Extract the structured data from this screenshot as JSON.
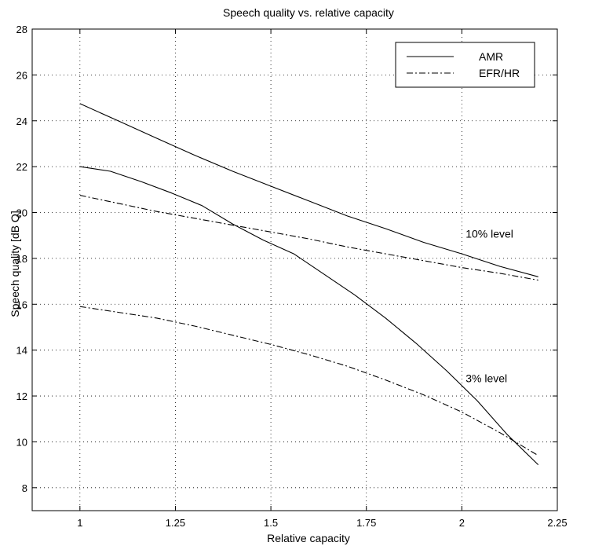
{
  "chart_data": {
    "type": "line",
    "title": "Speech quality vs. relative capacity",
    "xlabel": "Relative capacity",
    "ylabel": "Speech quality [dB Q]",
    "xlim": [
      0.875,
      2.25
    ],
    "ylim": [
      7,
      28
    ],
    "xticks": [
      1,
      1.25,
      1.5,
      1.75,
      2,
      2.25
    ],
    "xtick_labels": [
      "1",
      "1.25",
      "1.5",
      "1.75",
      "2",
      "2.25"
    ],
    "yticks": [
      8,
      10,
      12,
      14,
      16,
      18,
      20,
      22,
      24,
      26,
      28
    ],
    "ytick_labels": [
      "8",
      "10",
      "12",
      "14",
      "16",
      "18",
      "20",
      "22",
      "24",
      "26",
      "28"
    ],
    "grid": true,
    "legend_position": "top-right",
    "legend": [
      {
        "label": "AMR",
        "style": "solid"
      },
      {
        "label": "EFR/HR",
        "style": "dashdot"
      }
    ],
    "series": [
      {
        "legend": "AMR",
        "style": "solid",
        "points": [
          [
            1,
            24.75
          ],
          [
            1.1,
            24.0
          ],
          [
            1.2,
            23.25
          ],
          [
            1.3,
            22.5
          ],
          [
            1.4,
            21.8
          ],
          [
            1.5,
            21.15
          ],
          [
            1.6,
            20.5
          ],
          [
            1.7,
            19.85
          ],
          [
            1.8,
            19.3
          ],
          [
            1.9,
            18.7
          ],
          [
            2.0,
            18.2
          ],
          [
            2.1,
            17.65
          ],
          [
            2.2,
            17.2
          ]
        ]
      },
      {
        "legend": "EFR/HR",
        "style": "dashdot",
        "points": [
          [
            1,
            20.75
          ],
          [
            1.1,
            20.4
          ],
          [
            1.2,
            20.05
          ],
          [
            1.3,
            19.75
          ],
          [
            1.4,
            19.45
          ],
          [
            1.5,
            19.15
          ],
          [
            1.6,
            18.85
          ],
          [
            1.7,
            18.5
          ],
          [
            1.8,
            18.2
          ],
          [
            1.9,
            17.9
          ],
          [
            2.0,
            17.6
          ],
          [
            2.1,
            17.35
          ],
          [
            2.2,
            17.05
          ]
        ]
      },
      {
        "legend": "AMR",
        "style": "solid",
        "points": [
          [
            1,
            22.0
          ],
          [
            1.08,
            21.8
          ],
          [
            1.16,
            21.35
          ],
          [
            1.24,
            20.85
          ],
          [
            1.32,
            20.3
          ],
          [
            1.4,
            19.5
          ],
          [
            1.48,
            18.8
          ],
          [
            1.56,
            18.2
          ],
          [
            1.64,
            17.3
          ],
          [
            1.72,
            16.4
          ],
          [
            1.8,
            15.4
          ],
          [
            1.88,
            14.3
          ],
          [
            1.96,
            13.1
          ],
          [
            2.04,
            11.8
          ],
          [
            2.12,
            10.3
          ],
          [
            2.2,
            9.0
          ]
        ]
      },
      {
        "legend": "EFR/HR",
        "style": "dashdot",
        "points": [
          [
            1,
            15.9
          ],
          [
            1.1,
            15.65
          ],
          [
            1.2,
            15.4
          ],
          [
            1.3,
            15.05
          ],
          [
            1.4,
            14.65
          ],
          [
            1.5,
            14.25
          ],
          [
            1.6,
            13.8
          ],
          [
            1.7,
            13.3
          ],
          [
            1.8,
            12.7
          ],
          [
            1.9,
            12.05
          ],
          [
            2.0,
            11.3
          ],
          [
            2.1,
            10.4
          ],
          [
            2.2,
            9.4
          ]
        ]
      }
    ],
    "annotations": [
      {
        "text": "10% level",
        "x": 2.01,
        "y": 18.9
      },
      {
        "text": "3% level",
        "x": 2.01,
        "y": 12.6
      }
    ]
  }
}
